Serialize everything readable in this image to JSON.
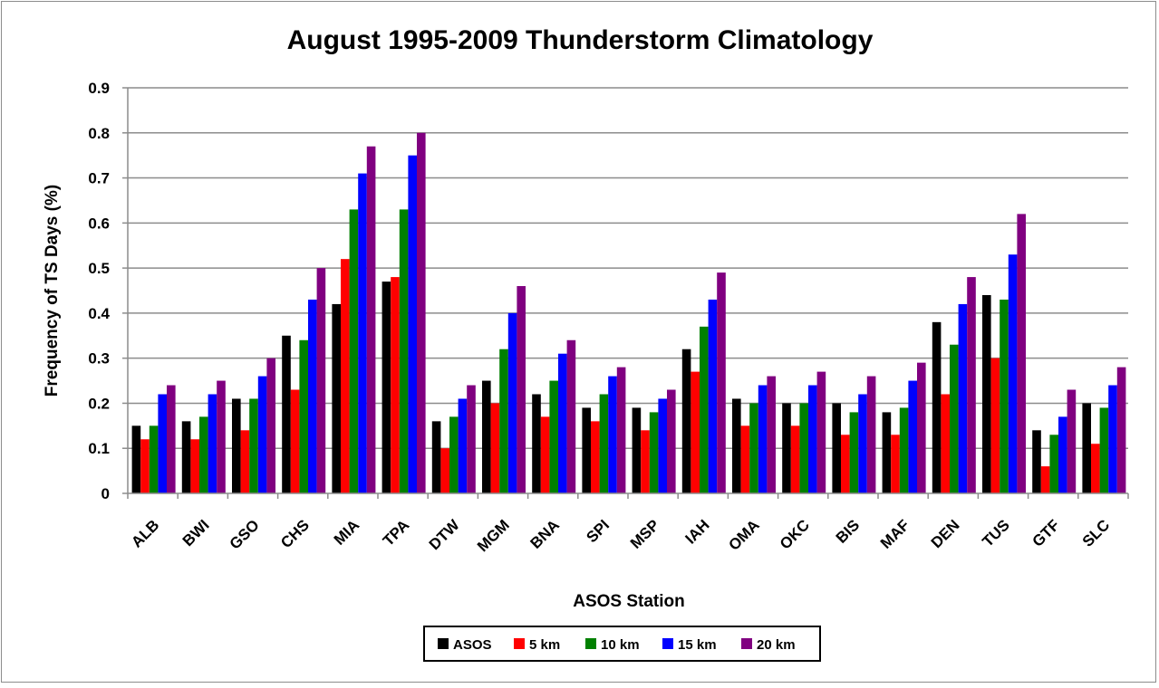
{
  "chart_data": {
    "type": "bar",
    "title": "August 1995-2009 Thunderstorm Climatology",
    "xlabel": "ASOS Station",
    "ylabel": "Frequency of TS Days (%)",
    "ylim": [
      0,
      0.9
    ],
    "yticks": [
      "0",
      "0.1",
      "0.2",
      "0.3",
      "0.4",
      "0.5",
      "0.6",
      "0.7",
      "0.8",
      "0.9"
    ],
    "grid": "horizontal",
    "legend_position": "bottom",
    "categories": [
      "ALB",
      "BWI",
      "GSO",
      "CHS",
      "MIA",
      "TPA",
      "DTW",
      "MGM",
      "BNA",
      "SPI",
      "MSP",
      "IAH",
      "OMA",
      "OKC",
      "BIS",
      "MAF",
      "DEN",
      "TUS",
      "GTF",
      "SLC"
    ],
    "series": [
      {
        "name": "ASOS",
        "color": "#000000",
        "values": [
          0.15,
          0.16,
          0.21,
          0.35,
          0.42,
          0.47,
          0.16,
          0.25,
          0.22,
          0.19,
          0.19,
          0.32,
          0.21,
          0.2,
          0.2,
          0.18,
          0.38,
          0.44,
          0.14,
          0.2
        ]
      },
      {
        "name": "5 km",
        "color": "#ff0000",
        "values": [
          0.12,
          0.12,
          0.14,
          0.23,
          0.52,
          0.48,
          0.1,
          0.2,
          0.17,
          0.16,
          0.14,
          0.27,
          0.15,
          0.15,
          0.13,
          0.13,
          0.22,
          0.3,
          0.06,
          0.11
        ]
      },
      {
        "name": "10 km",
        "color": "#008000",
        "values": [
          0.15,
          0.17,
          0.21,
          0.34,
          0.63,
          0.63,
          0.17,
          0.32,
          0.25,
          0.22,
          0.18,
          0.37,
          0.2,
          0.2,
          0.18,
          0.19,
          0.33,
          0.43,
          0.13,
          0.19
        ]
      },
      {
        "name": "15 km",
        "color": "#0000ff",
        "values": [
          0.22,
          0.22,
          0.26,
          0.43,
          0.71,
          0.75,
          0.21,
          0.4,
          0.31,
          0.26,
          0.21,
          0.43,
          0.24,
          0.24,
          0.22,
          0.25,
          0.42,
          0.53,
          0.17,
          0.24
        ]
      },
      {
        "name": "20 km",
        "color": "#800080",
        "values": [
          0.24,
          0.25,
          0.3,
          0.5,
          0.77,
          0.8,
          0.24,
          0.46,
          0.34,
          0.28,
          0.23,
          0.49,
          0.26,
          0.27,
          0.26,
          0.29,
          0.48,
          0.62,
          0.23,
          0.28
        ]
      }
    ]
  }
}
